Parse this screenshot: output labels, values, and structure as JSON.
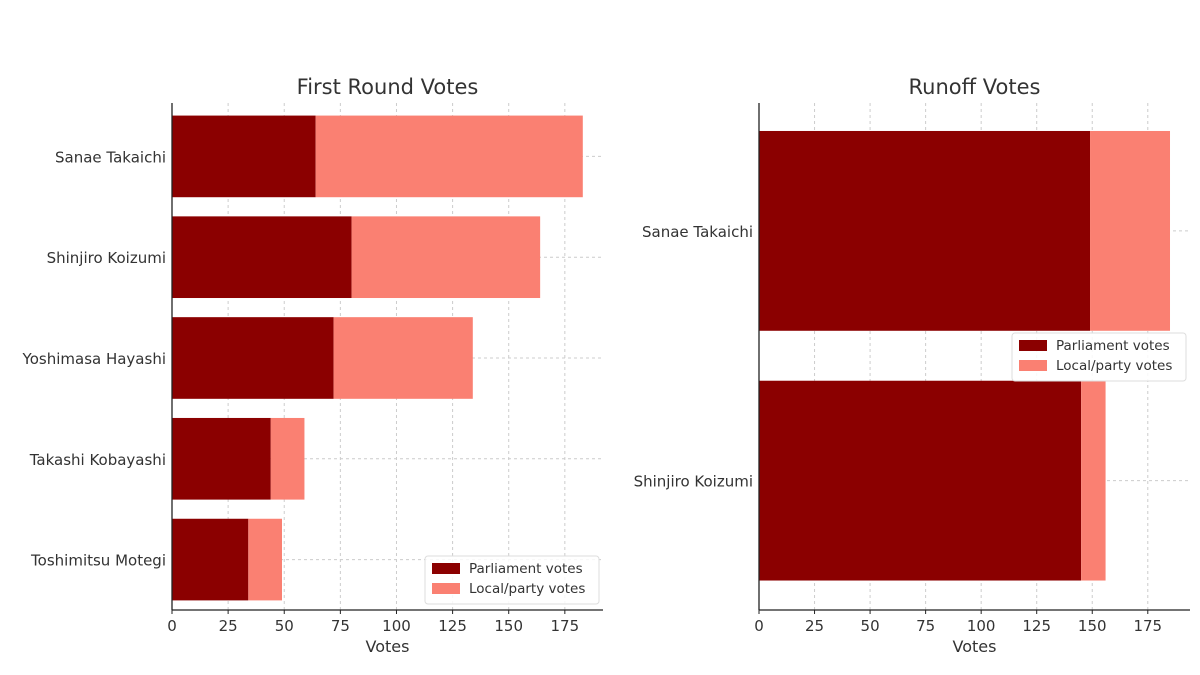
{
  "colors": {
    "parliament": "#8B0000",
    "local": "#FA8072"
  },
  "chart_data": [
    {
      "type": "bar",
      "orientation": "horizontal",
      "stacked": true,
      "title": "First Round Votes",
      "xlabel": "Votes",
      "ylabel": "",
      "xlim": [
        0,
        192
      ],
      "xticks": [
        0,
        25,
        50,
        75,
        100,
        125,
        150,
        175
      ],
      "grid": true,
      "legend_position": "lower-right",
      "categories": [
        "Sanae Takaichi",
        "Shinjiro Koizumi",
        "Yoshimasa Hayashi",
        "Takashi Kobayashi",
        "Toshimitsu Motegi"
      ],
      "series": [
        {
          "name": "Parliament votes",
          "values": [
            64,
            80,
            72,
            44,
            34
          ]
        },
        {
          "name": "Local/party votes",
          "values": [
            119,
            84,
            62,
            15,
            15
          ]
        }
      ]
    },
    {
      "type": "bar",
      "orientation": "horizontal",
      "stacked": true,
      "title": "Runoff Votes",
      "xlabel": "Votes",
      "ylabel": "",
      "xlim": [
        0,
        194
      ],
      "xticks": [
        0,
        25,
        50,
        75,
        100,
        125,
        150,
        175
      ],
      "grid": true,
      "legend_position": "center-right",
      "categories": [
        "Sanae Takaichi",
        "Shinjiro Koizumi"
      ],
      "series": [
        {
          "name": "Parliament votes",
          "values": [
            149,
            145
          ]
        },
        {
          "name": "Local/party votes",
          "values": [
            36,
            11
          ]
        }
      ]
    }
  ]
}
